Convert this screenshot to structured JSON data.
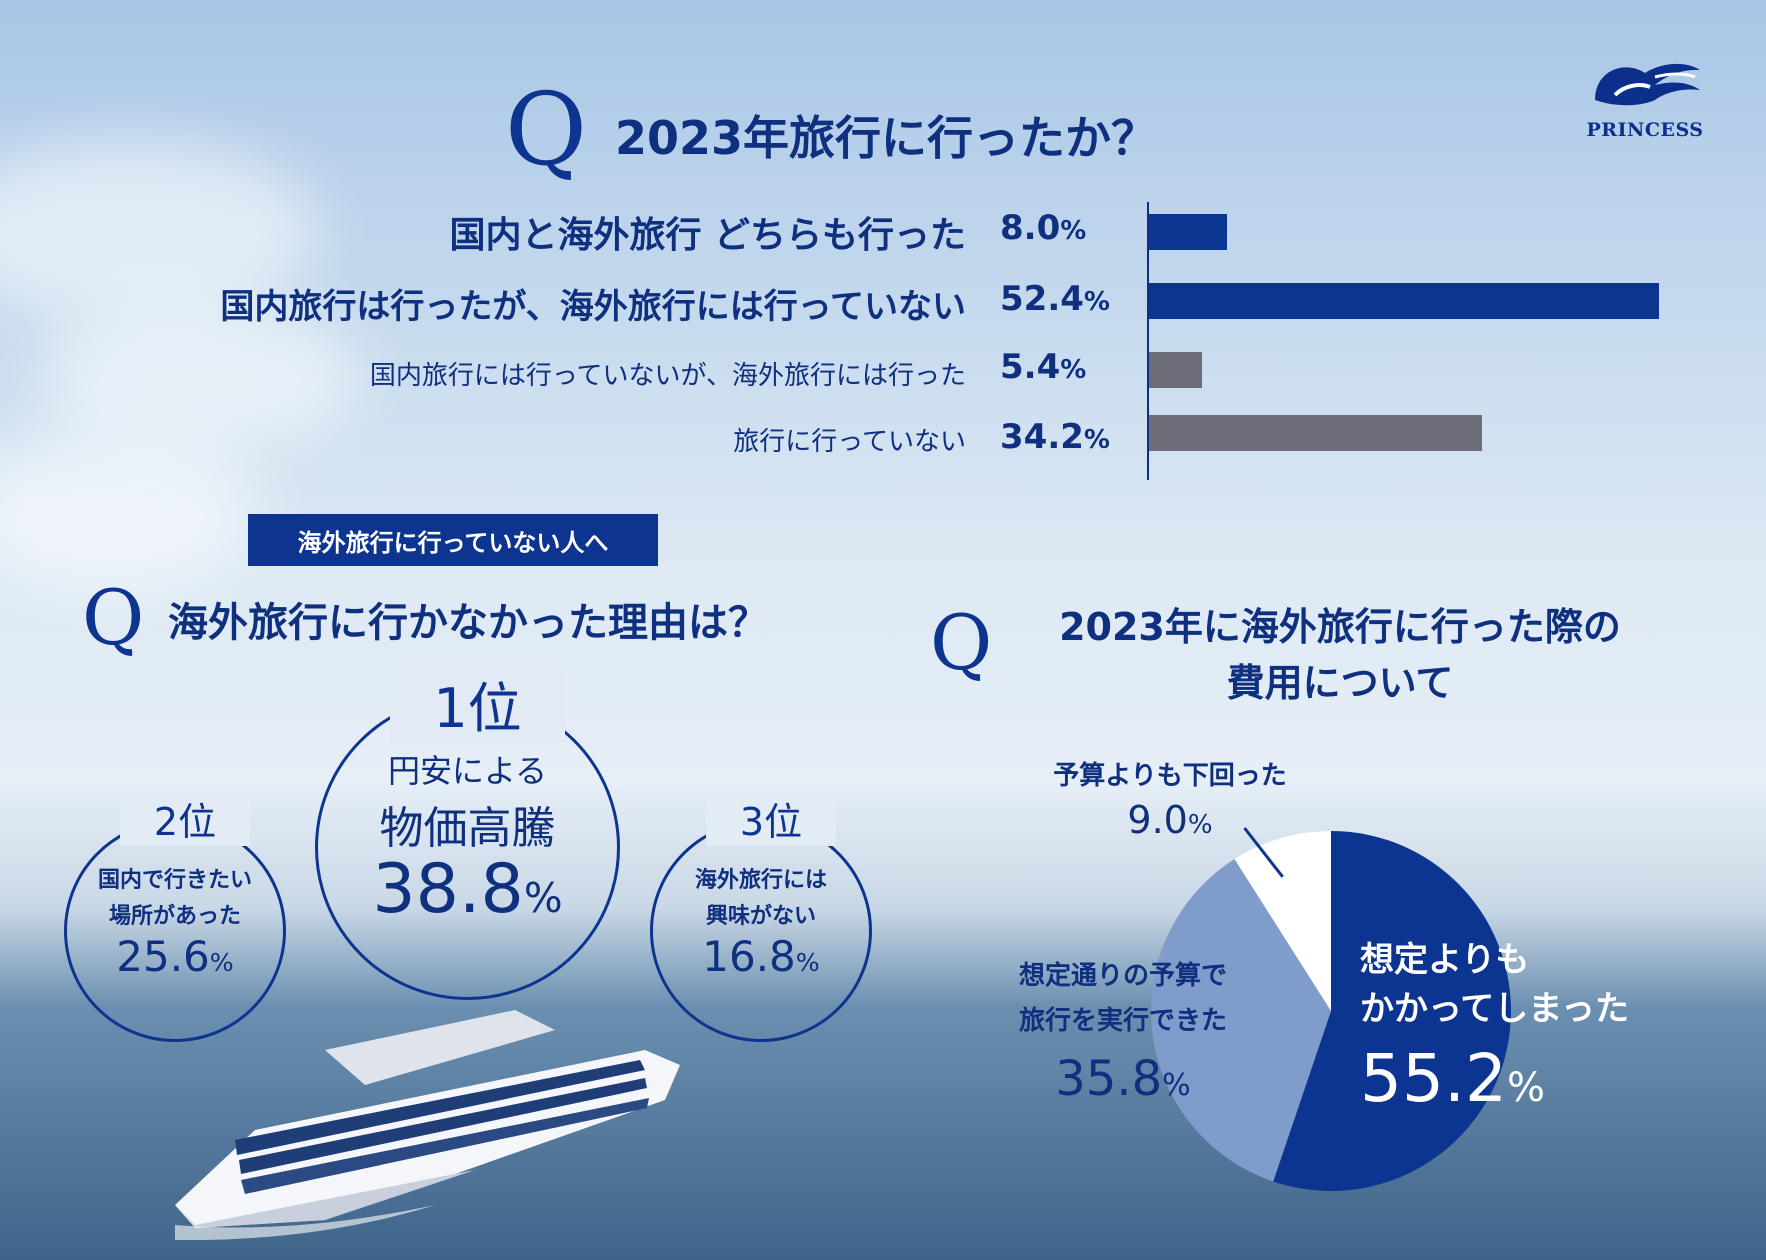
{
  "logo": {
    "text": "PRINCESS"
  },
  "q_letter": "Q",
  "chart_data": [
    {
      "type": "bar",
      "title": "2023年旅行に行ったか？",
      "categories": [
        "国内と海外旅行 どちらも行った",
        "国内旅行は行ったが、海外旅行には行っていない",
        "国内旅行には行っていないが、海外旅行には行った",
        "旅行に行っていない"
      ],
      "values": [
        8.0,
        52.4,
        5.4,
        34.2
      ],
      "value_labels": [
        "8.0",
        "52.4",
        "5.4",
        "34.2"
      ],
      "unit": "%",
      "colors": [
        "#0b3590",
        "#0b3590",
        "#6c6d78",
        "#6c6d78"
      ]
    },
    {
      "type": "table",
      "badge": "海外旅行に行っていない人へ",
      "title": "海外旅行に行かなかった理由は？",
      "rows": [
        {
          "rank": "1位",
          "text1": "円安による",
          "text2": "物価高騰",
          "value": "38.8",
          "unit": "%"
        },
        {
          "rank": "2位",
          "text1": "国内で行きたい",
          "text2": "場所があった",
          "value": "25.6",
          "unit": "%"
        },
        {
          "rank": "3位",
          "text1": "海外旅行には",
          "text2": "興味がない",
          "value": "16.8",
          "unit": "%"
        }
      ]
    },
    {
      "type": "pie",
      "title_line1": "2023年に海外旅行に行った際の",
      "title_line2": "費用について",
      "slices": [
        {
          "label_line1": "想定よりも",
          "label_line2": "かかってしまった",
          "value": 55.2,
          "value_label": "55.2",
          "color": "#0b3590"
        },
        {
          "label_line1": "想定通りの予算で",
          "label_line2": "旅行を実行できた",
          "value": 35.8,
          "value_label": "35.8",
          "color": "#7f9ccb"
        },
        {
          "label_line1": "予算よりも下回った",
          "label_line2": "",
          "value": 9.0,
          "value_label": "9.0",
          "color": "#ffffff"
        }
      ],
      "unit": "%"
    }
  ]
}
